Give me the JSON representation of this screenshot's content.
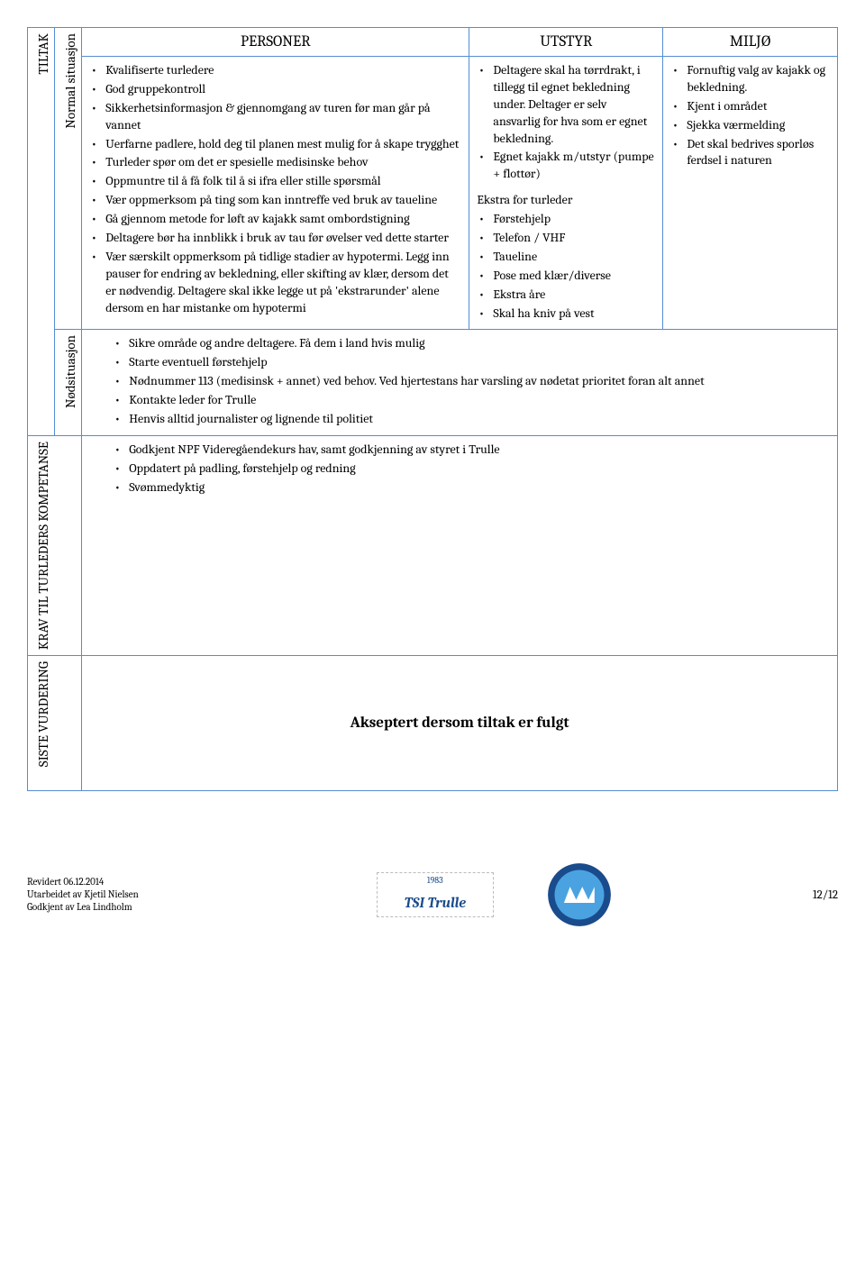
{
  "columns": {
    "personer": "PERSONER",
    "utstyr": "UTSTYR",
    "miljo": "MILJØ"
  },
  "row_labels": {
    "tiltak": "TILTAK",
    "normal": "Normal situasjon",
    "nod": "Nødsituasjon",
    "krav": "KRAV TIL TURLEDERS KOMPETANSE",
    "siste": "SISTE VURDERING"
  },
  "tiltak_normal": {
    "personer": [
      "Kvalifiserte turledere",
      "God gruppekontroll",
      "Sikkerhetsinformasjon & gjennomgang av turen før man går på vannet",
      "Uerfarne padlere, hold deg til planen mest mulig for å skape trygghet",
      "Turleder spør om det er spesielle medisinske behov",
      "Oppmuntre til å få folk  til å si ifra eller stille spørsmål",
      "Vær oppmerksom på ting som kan inntreffe ved bruk av taueline",
      "Gå gjennom metode for løft av kajakk samt ombordstigning",
      "Deltagere bør ha innblikk i bruk av tau før øvelser ved dette starter",
      "Vær særskilt oppmerksom på  tidlige stadier av hypotermi. Legg inn pauser for endring av bekledning, eller skifting av klær, dersom det er nødvendig. Deltagere skal ikke legge ut på 'ekstrarunder' alene dersom en har mistanke om hypotermi"
    ],
    "utstyr_top": [
      "Deltagere skal ha tørrdrakt, i tillegg til egnet bekledning under. Deltager er selv ansvarlig for hva som er egnet bekledning.",
      "Egnet kajakk m/utstyr (pumpe + flottør)"
    ],
    "utstyr_ekstra_head": "Ekstra for turleder",
    "utstyr_ekstra": [
      "Førstehjelp",
      "Telefon / VHF",
      "Taueline",
      "Pose med klær/diverse",
      "Ekstra åre",
      "Skal ha kniv på vest"
    ],
    "miljo": [
      "Fornuftig valg av kajakk og bekledning.",
      "Kjent i området",
      "Sjekka værmelding",
      "Det skal bedrives sporløs ferdsel i naturen"
    ]
  },
  "tiltak_nod": [
    "Sikre område og andre deltagere. Få dem i land hvis mulig",
    "Starte eventuell førstehjelp",
    "Nødnummer 113 (medisinsk + annet) ved behov. Ved hjertestans har varsling av nødetat prioritet foran alt annet",
    "Kontakte leder for Trulle",
    "Henvis alltid journalister og lignende til politiet"
  ],
  "krav": [
    "Godkjent NPF Videregåendekurs hav, samt godkjenning av styret i Trulle",
    "Oppdatert på padling, førstehjelp og redning",
    "Svømmedyktig"
  ],
  "siste_vurdering": "Akseptert dersom tiltak er fulgt",
  "footer": {
    "line1": "Revidert 06.12.2014",
    "line2": "Utarbeidet av Kjetil Nielsen",
    "line3": "Godkjent av Lea Lindholm",
    "page": "12/12"
  },
  "style": {
    "border_color": "#548dd4",
    "font_family": "Cambria, Georgia, serif",
    "body_fontsize": 14,
    "header_fontsize": 17
  }
}
